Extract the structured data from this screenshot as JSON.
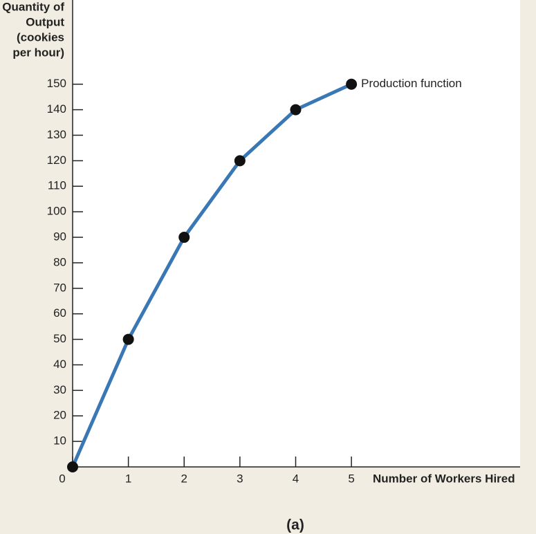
{
  "chart_data": {
    "type": "line",
    "y_label": [
      "Quantity of",
      "Output",
      "(cookies",
      "per hour)"
    ],
    "x_label": "Number of Workers Hired",
    "caption": "(a)",
    "annotation": "Production function",
    "x": [
      0,
      1,
      2,
      3,
      4,
      5
    ],
    "series": [
      {
        "name": "Production function",
        "color": "#3a78b5",
        "values": [
          0,
          50,
          90,
          120,
          140,
          150
        ]
      }
    ],
    "marker_color": "#111111",
    "xlim": [
      0,
      8
    ],
    "ylim": [
      0,
      183
    ],
    "xticks": [
      0,
      1,
      2,
      3,
      4,
      5
    ],
    "yticks": [
      10,
      20,
      30,
      40,
      50,
      60,
      70,
      80,
      90,
      100,
      110,
      120,
      130,
      140,
      150
    ]
  }
}
